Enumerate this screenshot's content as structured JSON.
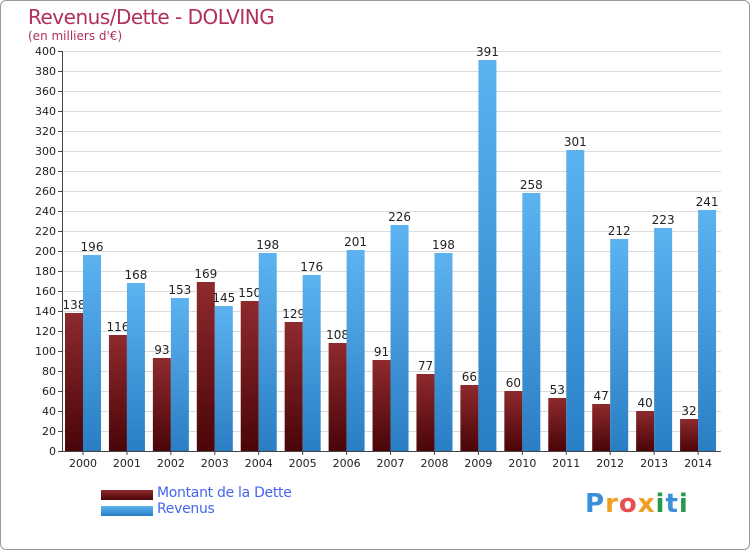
{
  "chart_data": {
    "type": "bar",
    "title": "Revenus/Dette - DOLVING",
    "subtitle": "(en milliers d'€)",
    "xlabel": "",
    "ylabel": "",
    "ylim": [
      0,
      400
    ],
    "yticks": [
      0,
      20,
      40,
      60,
      80,
      100,
      120,
      140,
      160,
      180,
      200,
      220,
      240,
      260,
      280,
      300,
      320,
      340,
      360,
      380,
      400
    ],
    "grid": true,
    "legend_position": "bottom-left",
    "categories": [
      "2000",
      "2001",
      "2002",
      "2003",
      "2004",
      "2005",
      "2006",
      "2007",
      "2008",
      "2009",
      "2010",
      "2011",
      "2012",
      "2013",
      "2014"
    ],
    "series": [
      {
        "name": "Montant de la Dette",
        "color": "#7a1a1f",
        "values": [
          138,
          116,
          93,
          169,
          150,
          129,
          108,
          91,
          77,
          66,
          60,
          53,
          47,
          40,
          32
        ]
      },
      {
        "name": "Revenus",
        "color": "#4aa3e6",
        "values": [
          196,
          168,
          153,
          145,
          198,
          176,
          201,
          226,
          198,
          391,
          258,
          301,
          212,
          223,
          241
        ]
      }
    ]
  },
  "logo": {
    "letters": [
      {
        "ch": "P",
        "color": "#3a8fd8"
      },
      {
        "ch": "r",
        "color": "#f0a020"
      },
      {
        "ch": "o",
        "color": "#e85050"
      },
      {
        "ch": "x",
        "color": "#f0a020"
      },
      {
        "ch": "i",
        "color": "#2a9a4a"
      },
      {
        "ch": "t",
        "color": "#3a8fd8"
      },
      {
        "ch": "i",
        "color": "#2a9a4a"
      }
    ]
  }
}
